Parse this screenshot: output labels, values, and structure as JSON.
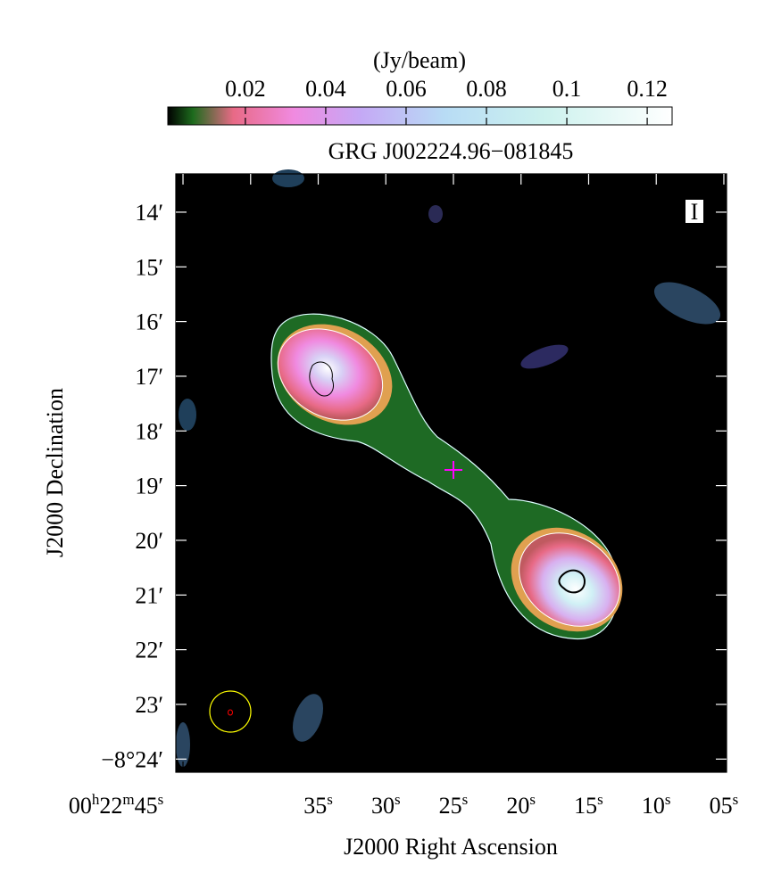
{
  "chart_data": {
    "type": "image",
    "title": "GRG J002224.96−081845",
    "xlabel": "J2000 Right Ascension",
    "ylabel": "J2000 Declination",
    "stokes": "I",
    "colorbar": {
      "label": "(Jy/beam)",
      "lim": [
        0.0007,
        0.1262
      ],
      "ticks": [
        0.02,
        0.04,
        0.06,
        0.08,
        0.1,
        0.12
      ]
    },
    "xlim": [
      45.53,
      4.8
    ],
    "xticks": [
      {
        "value": 45,
        "label": "00h22m45s"
      },
      {
        "value": 40,
        "label": null
      },
      {
        "value": 35,
        "label": "35s"
      },
      {
        "value": 30,
        "label": "30s"
      },
      {
        "value": 25,
        "label": "25s"
      },
      {
        "value": 20,
        "label": "20s"
      },
      {
        "value": 15,
        "label": "15s"
      },
      {
        "value": 10,
        "label": "10s"
      },
      {
        "value": 5,
        "label": "05s"
      }
    ],
    "ylim": [
      -504.24,
      -493.3
    ],
    "yticks": [
      {
        "value": -494,
        "label": "14′"
      },
      {
        "value": -495,
        "label": "15′"
      },
      {
        "value": -496,
        "label": "16′"
      },
      {
        "value": -497,
        "label": "17′"
      },
      {
        "value": -498,
        "label": "18′"
      },
      {
        "value": -499,
        "label": "19′"
      },
      {
        "value": -500,
        "label": "20′"
      },
      {
        "value": -501,
        "label": "21′"
      },
      {
        "value": -502,
        "label": "22′"
      },
      {
        "value": -503,
        "label": "23′"
      },
      {
        "value": -504,
        "label": "−8°24′"
      }
    ]
  }
}
